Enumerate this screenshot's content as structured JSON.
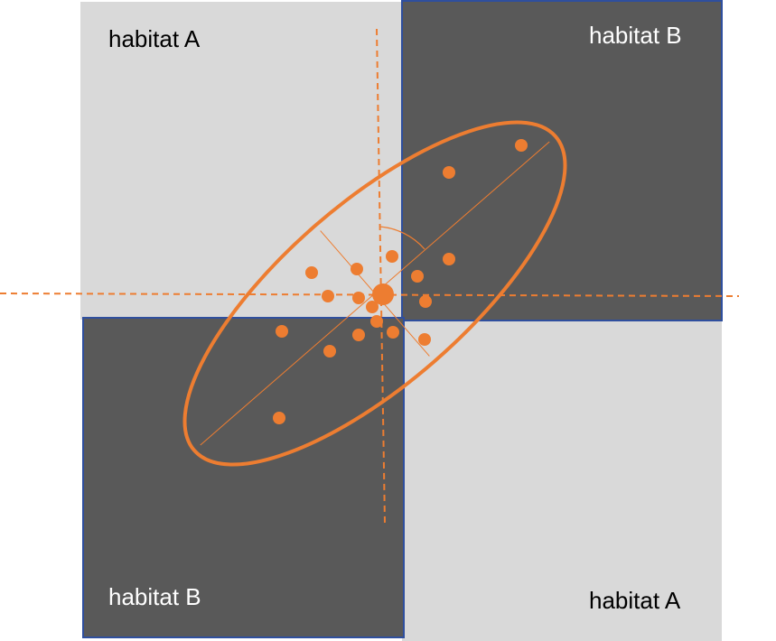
{
  "labels": {
    "top_left": "habitat A",
    "top_right": "habitat B",
    "bottom_left": "habitat B",
    "bottom_right": "habitat A"
  },
  "colors": {
    "habitat_a_fill": "#d9d9d9",
    "habitat_b_fill": "#595959",
    "habitat_b_border": "#2f4f9e",
    "accent_orange": "#ed7d31",
    "label_dark": "#000000",
    "label_light": "#ffffff"
  }
}
